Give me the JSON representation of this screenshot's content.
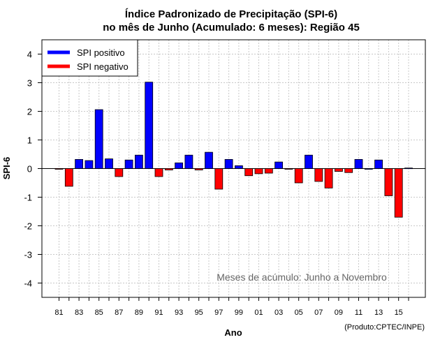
{
  "chart_data": {
    "type": "bar",
    "title": "Índice Padronizado de Precipitação (SPI-6)",
    "subtitle": "no mês de Junho (Acumulado: 6 meses): Região 45",
    "xlabel": "Ano",
    "ylabel": "SPI-6",
    "ylim": [
      -4.5,
      4.5
    ],
    "yticks": [
      -4,
      -3,
      -2,
      -1,
      0,
      1,
      2,
      3,
      4
    ],
    "ytick_labels": [
      "-4",
      "-3",
      "-2",
      "-1",
      "0",
      "1",
      "2",
      "3",
      "4"
    ],
    "x": [
      1981,
      1982,
      1983,
      1984,
      1985,
      1986,
      1987,
      1988,
      1989,
      1990,
      1991,
      1992,
      1993,
      1994,
      1995,
      1996,
      1997,
      1998,
      1999,
      2000,
      2001,
      2002,
      2003,
      2004,
      2005,
      2006,
      2007,
      2008,
      2009,
      2010,
      2011,
      2012,
      2013,
      2014,
      2015,
      2016
    ],
    "values": [
      -0.02,
      -0.62,
      0.32,
      0.28,
      2.06,
      0.34,
      -0.28,
      0.3,
      0.47,
      3.02,
      -0.28,
      -0.05,
      0.2,
      0.47,
      -0.05,
      0.57,
      -0.72,
      0.32,
      0.1,
      -0.25,
      -0.18,
      -0.16,
      0.23,
      -0.02,
      -0.5,
      0.47,
      -0.45,
      -0.68,
      -0.1,
      -0.14,
      0.32,
      0.0,
      0.3,
      -0.95,
      -1.7,
      0.02
    ],
    "xtick_labels": [
      "81",
      "83",
      "85",
      "87",
      "89",
      "91",
      "93",
      "95",
      "97",
      "99",
      "01",
      "03",
      "05",
      "07",
      "09",
      "11",
      "13",
      "15"
    ],
    "legend": [
      {
        "label": "SPI positivo",
        "color": "#0000ff"
      },
      {
        "label": "SPI negativo",
        "color": "#ff0000"
      }
    ],
    "legend_position": "top-left",
    "annotation": "Meses de acúmulo: Junho a Novembro",
    "credit": "(Produto:CPTEC/INPE)",
    "grid": true,
    "colors": {
      "positive": "#0000ff",
      "negative": "#ff0000"
    }
  }
}
